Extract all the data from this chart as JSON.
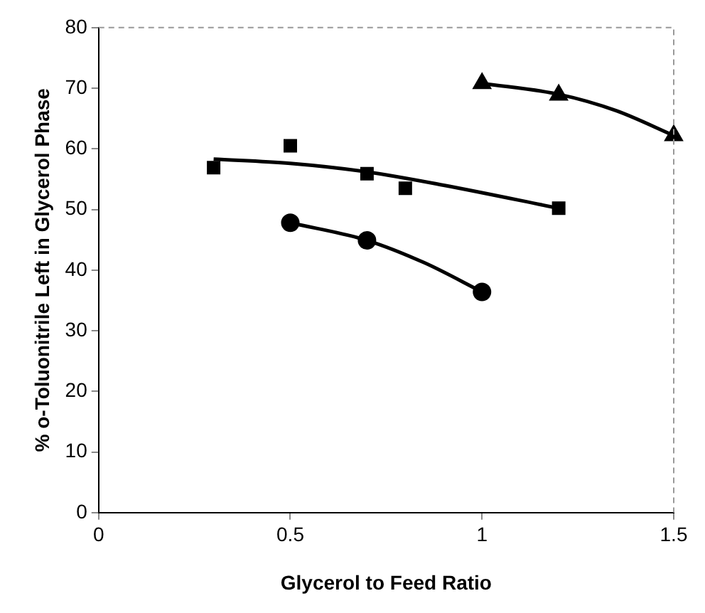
{
  "chart_data": {
    "type": "scatter",
    "xlabel": "Glycerol to Feed Ratio",
    "ylabel": "% o-Toluonitrile Left in Glycerol Phase",
    "xlim": [
      0,
      1.5
    ],
    "xticks": [
      0,
      0.5,
      1,
      1.5
    ],
    "ylim": [
      0,
      80
    ],
    "yticks": [
      0,
      10,
      20,
      30,
      40,
      50,
      60,
      70,
      80
    ],
    "grid": false,
    "legend": false,
    "series": [
      {
        "marker": "triangle",
        "color": "#000000",
        "x": [
          1.0,
          1.2,
          1.5
        ],
        "values": [
          70.8,
          68.9,
          62.2
        ]
      },
      {
        "marker": "square",
        "color": "#000000",
        "x": [
          0.3,
          0.5,
          0.7,
          0.8,
          1.2
        ],
        "values": [
          56.9,
          60.5,
          55.9,
          53.5,
          50.2
        ]
      },
      {
        "marker": "circle",
        "color": "#000000",
        "x": [
          0.5,
          0.7,
          1.0
        ],
        "values": [
          47.8,
          44.9,
          36.4
        ]
      },
      {
        "type": "line",
        "marker": "none",
        "color": "#000000",
        "x": [
          1.0,
          1.2,
          1.35,
          1.5
        ],
        "values": [
          70.8,
          69.0,
          66.3,
          62.2
        ]
      },
      {
        "type": "line",
        "marker": "none",
        "color": "#000000",
        "x": [
          0.3,
          0.5,
          0.7,
          0.9,
          1.2
        ],
        "values": [
          58.3,
          57.6,
          56.2,
          54.0,
          50.2
        ]
      },
      {
        "type": "line",
        "marker": "none",
        "color": "#000000",
        "x": [
          0.5,
          0.7,
          0.85,
          1.0
        ],
        "values": [
          47.8,
          44.9,
          41.2,
          36.4
        ]
      }
    ]
  }
}
